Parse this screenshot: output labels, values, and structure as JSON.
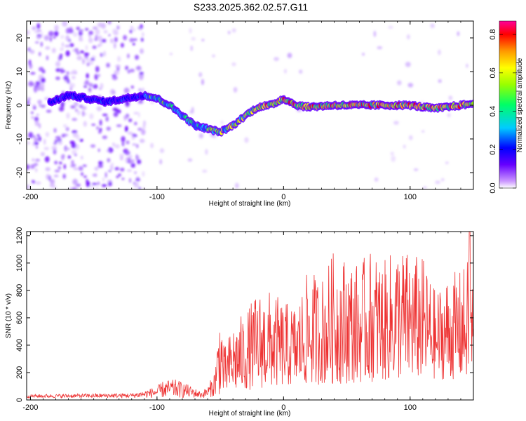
{
  "title": "S233.2025.362.02.57.G11",
  "chart_data": [
    {
      "type": "heatmap",
      "xlabel": "Height of straight line (km)",
      "ylabel": "Frequency (Hz)",
      "xlim": [
        -203,
        150
      ],
      "ylim": [
        -25,
        25
      ],
      "xticks": [
        -200,
        -100,
        0,
        100
      ],
      "yticks": [
        -20,
        -10,
        0,
        10,
        20
      ],
      "colorbar": {
        "label": "Normalized spectral amplitude",
        "range": [
          0.0,
          0.87
        ],
        "ticks": [
          "0.0",
          "0.2",
          "0.4",
          "0.6",
          "0.8"
        ],
        "colors": [
          "#ffffff",
          "#cc99ff",
          "#6600ff",
          "#0000ff",
          "#00ccff",
          "#00ff66",
          "#99ff00",
          "#ffff00",
          "#ff9900",
          "#ff0000",
          "#ff0099"
        ]
      },
      "ridge": {
        "x": [
          -183,
          -170,
          -155,
          -140,
          -125,
          -110,
          -100,
          -90,
          -80,
          -70,
          -60,
          -50,
          -40,
          -30,
          -20,
          -10,
          0,
          10,
          20,
          40,
          60,
          80,
          100,
          120,
          150
        ],
        "y": [
          1,
          3,
          2,
          1,
          2,
          3,
          2,
          0,
          -3,
          -6,
          -7,
          -8,
          -6,
          -3,
          -0.5,
          0,
          2,
          0,
          -0.5,
          0,
          0,
          0,
          0,
          -1,
          0.5
        ]
      }
    },
    {
      "type": "line",
      "xlabel": "Height of straight line (km)",
      "ylabel": "SNR (10 * v/v)",
      "xlim": [
        -203,
        150
      ],
      "ylim": [
        0,
        1230
      ],
      "xticks": [
        -200,
        -100,
        0,
        100
      ],
      "yticks": [
        0,
        200,
        400,
        600,
        800,
        1000,
        1200
      ],
      "color": "#ee3333",
      "envelope": {
        "x": [
          -203,
          -120,
          -110,
          -100,
          -95,
          -85,
          -75,
          -65,
          -60,
          -55,
          -52,
          -50,
          -47,
          -45,
          -40,
          -30,
          -20,
          -10,
          0,
          10,
          20,
          30,
          40,
          50,
          60,
          70,
          80,
          90,
          100,
          110,
          120,
          130,
          140,
          145,
          147,
          150
        ],
        "y": [
          40,
          50,
          70,
          100,
          140,
          150,
          110,
          60,
          100,
          200,
          480,
          750,
          380,
          420,
          560,
          650,
          800,
          800,
          720,
          700,
          960,
          900,
          1100,
          1050,
          1000,
          1110,
          1020,
          1150,
          1080,
          1050,
          800,
          920,
          950,
          1000,
          1230,
          760
        ]
      },
      "floor": {
        "x": [
          -203,
          -100,
          -60,
          -50,
          -30,
          0,
          50,
          100,
          150
        ],
        "y": [
          15,
          15,
          15,
          40,
          70,
          100,
          120,
          150,
          150
        ]
      }
    }
  ]
}
